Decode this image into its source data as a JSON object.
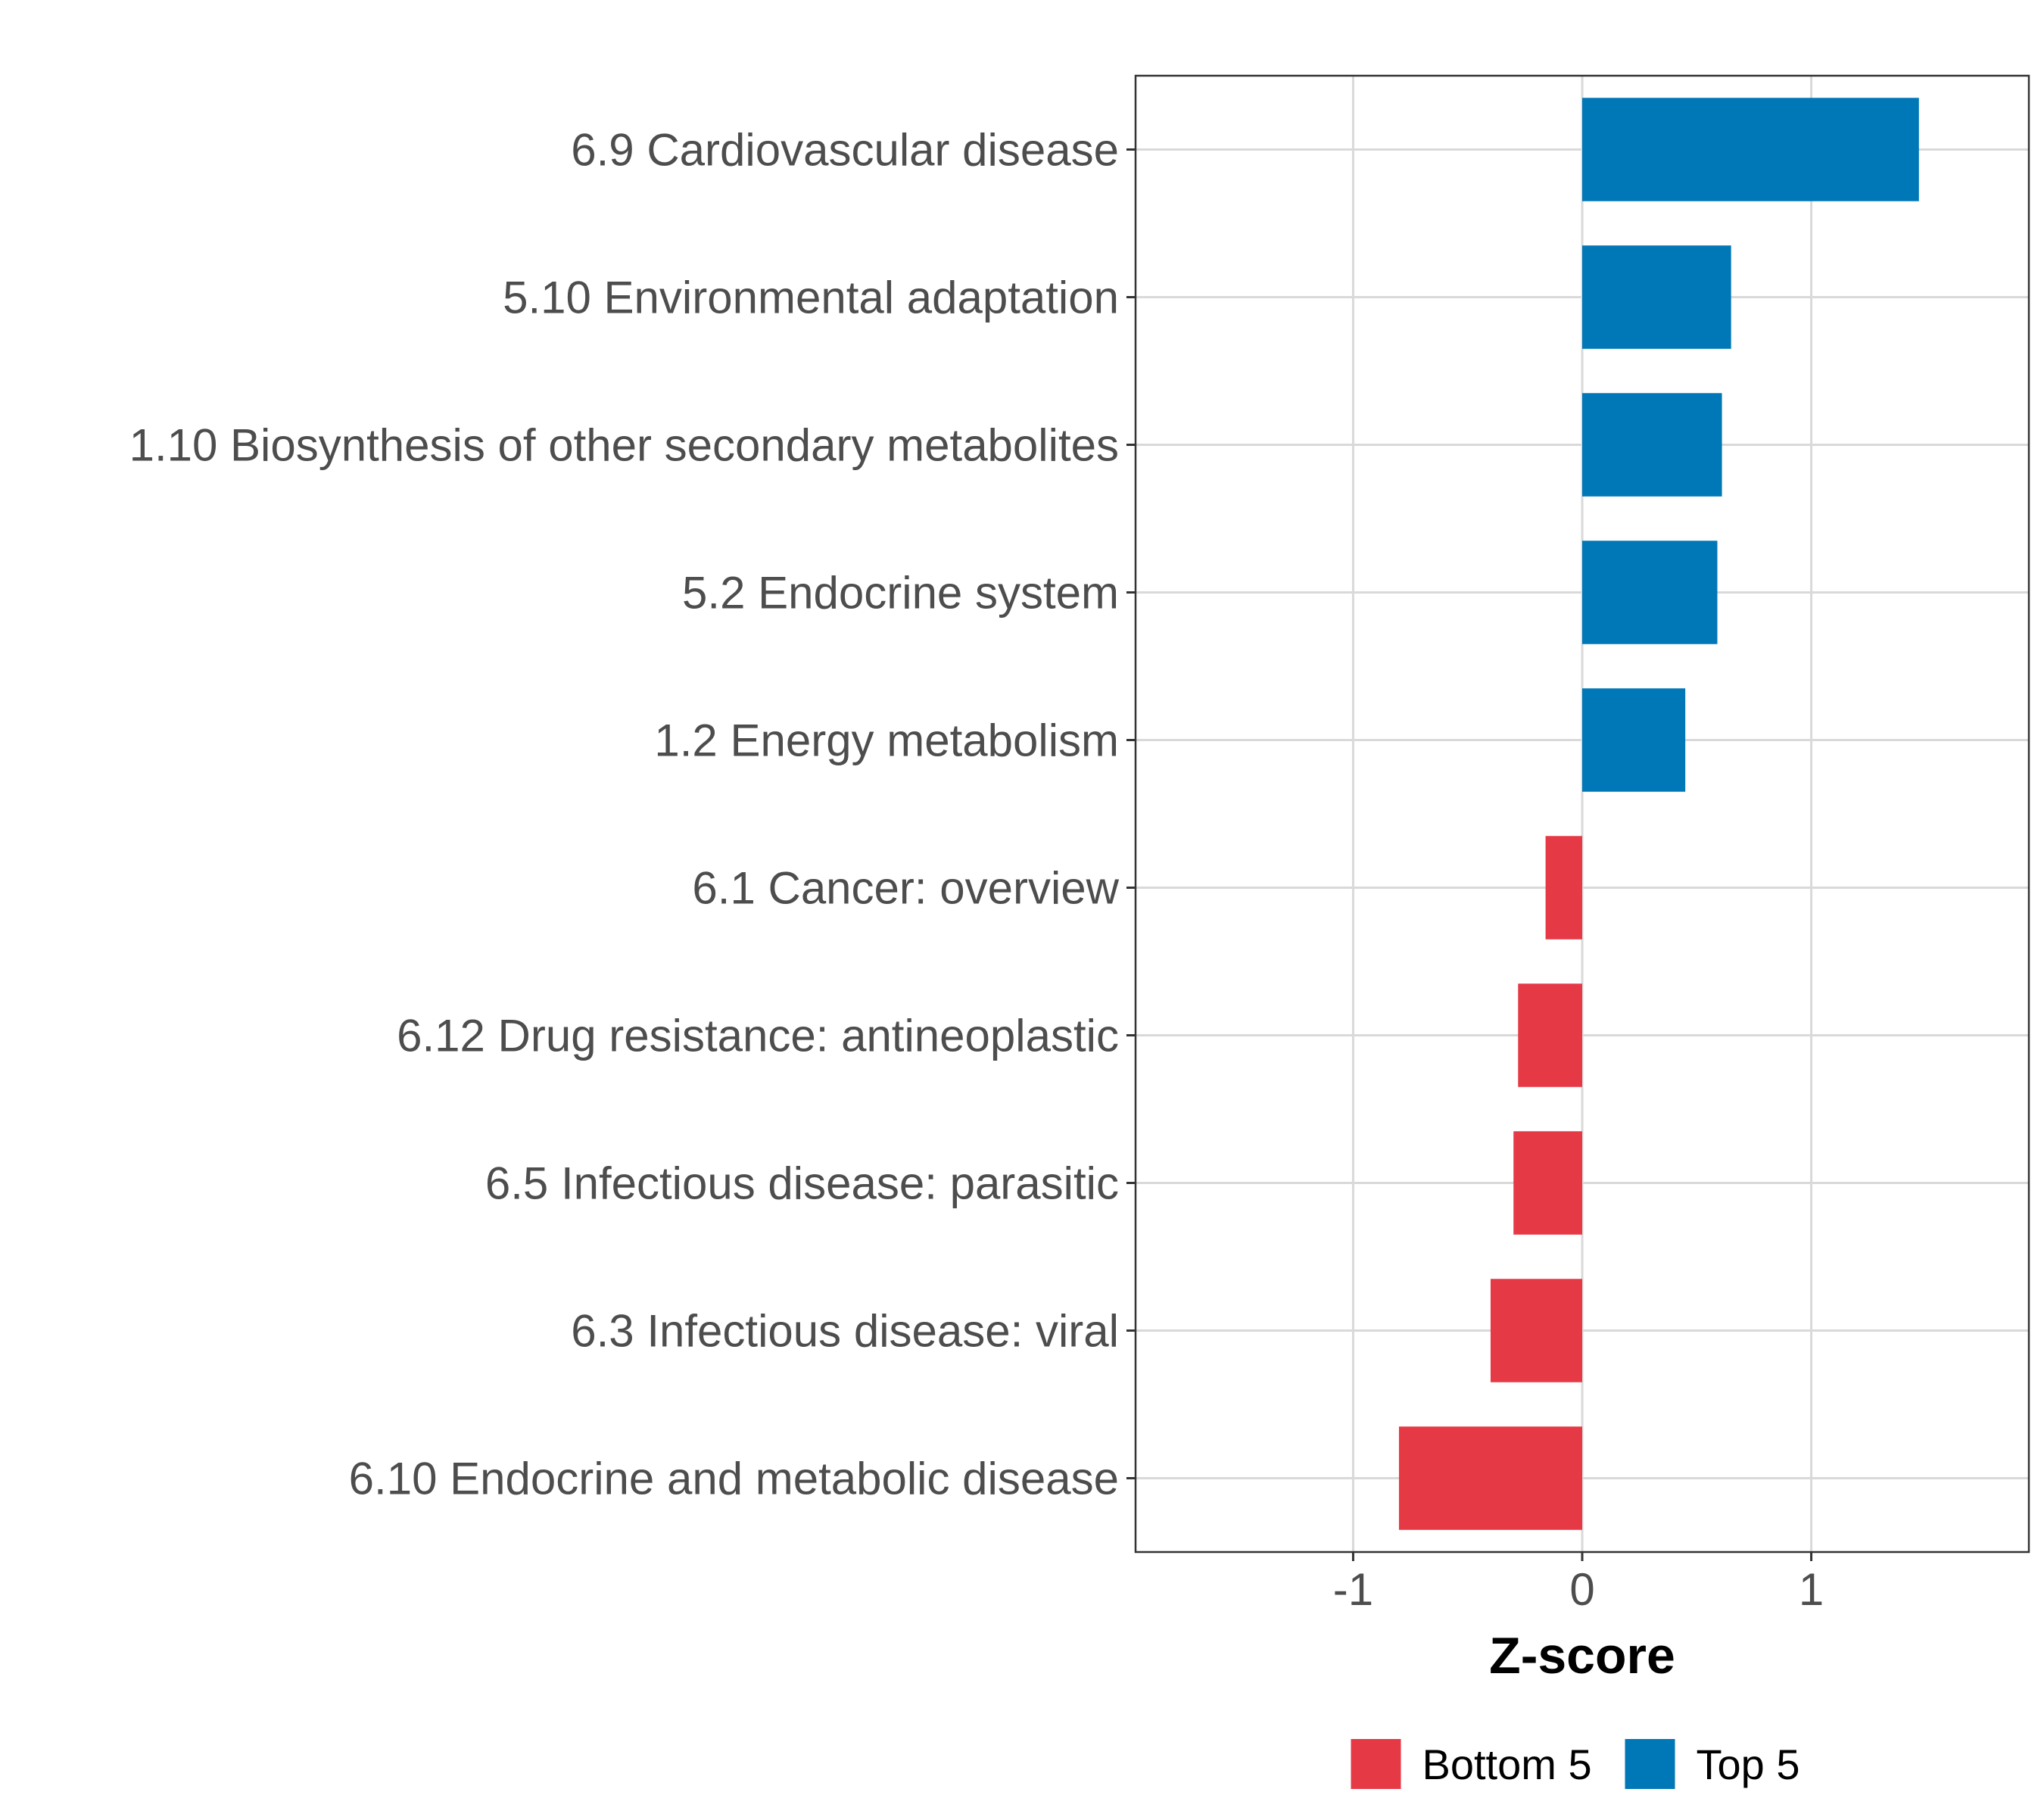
{
  "chart_data": {
    "type": "bar",
    "orientation": "horizontal",
    "categories": [
      "6.9 Cardiovascular disease",
      "5.10 Environmental adaptation",
      "1.10 Biosynthesis of other secondary metabolites",
      "5.2 Endocrine system",
      "1.2 Energy metabolism",
      "6.1 Cancer: overview",
      "6.12 Drug resistance: antineoplastic",
      "6.5 Infectious disease: parasitic",
      "6.3 Infectious disease: viral",
      "6.10 Endocrine and metabolic disease"
    ],
    "values": [
      1.47,
      0.65,
      0.61,
      0.59,
      0.45,
      -0.16,
      -0.28,
      -0.3,
      -0.4,
      -0.8
    ],
    "groups": [
      "Top 5",
      "Top 5",
      "Top 5",
      "Top 5",
      "Top 5",
      "Bottom 5",
      "Bottom 5",
      "Bottom 5",
      "Bottom 5",
      "Bottom 5"
    ],
    "xlabel": "Z-score",
    "ylabel": "",
    "xlim": [
      -1.95,
      1.95
    ],
    "xticks": [
      -1,
      0,
      1
    ],
    "xtick_labels": [
      "-1",
      "0",
      "1"
    ],
    "grid": true,
    "legend": {
      "position": "bottom",
      "entries": [
        {
          "label": "Bottom 5",
          "color": "#e63946"
        },
        {
          "label": "Top 5",
          "color": "#0077b6"
        }
      ]
    }
  }
}
